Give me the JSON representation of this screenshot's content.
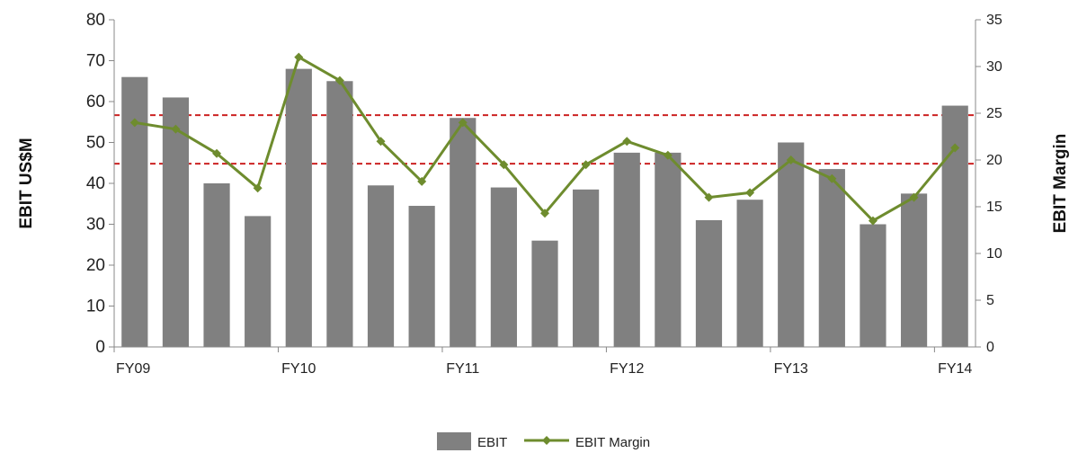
{
  "chart_data": {
    "type": "bar",
    "x_tick_labels": [
      "FY09",
      "FY10",
      "FY11",
      "FY12",
      "FY13",
      "FY14"
    ],
    "ylabel": "EBIT US$M",
    "y2label": "EBIT Margin",
    "ylim": [
      0,
      80
    ],
    "y_ticks": [
      0,
      10,
      20,
      30,
      40,
      50,
      60,
      70,
      80
    ],
    "y2lim": [
      0,
      35
    ],
    "y2_ticks": [
      0,
      5,
      10,
      15,
      20,
      25,
      30,
      35
    ],
    "series": [
      {
        "name": "EBIT",
        "kind": "bar",
        "axis": "left",
        "color": "#808080",
        "values": [
          66,
          61,
          40,
          32,
          68,
          65,
          39.5,
          34.5,
          56,
          39,
          26,
          38.5,
          47.5,
          47.5,
          31,
          36,
          50,
          43.5,
          30,
          37.5,
          59
        ]
      },
      {
        "name": "EBIT Margin",
        "kind": "line",
        "axis": "right",
        "color": "#6e8c2e",
        "values": [
          24,
          23.3,
          20.7,
          17,
          31,
          28.5,
          22,
          17.7,
          24,
          19.5,
          14.3,
          19.5,
          22,
          20.5,
          16,
          16.5,
          20,
          18,
          13.5,
          16,
          21.3
        ]
      }
    ],
    "reference_lines": [
      {
        "axis": "right",
        "value": 24.8,
        "color": "#cc2222",
        "style": "dashed"
      },
      {
        "axis": "right",
        "value": 19.6,
        "color": "#cc2222",
        "style": "dashed"
      }
    ],
    "grid": false,
    "legend": "bottom-center"
  }
}
